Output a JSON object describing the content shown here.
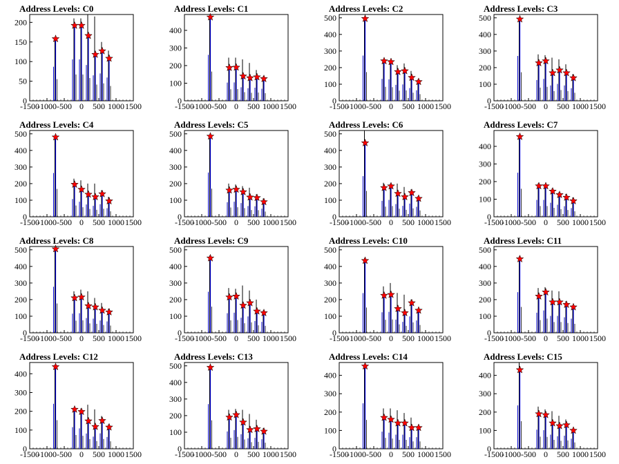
{
  "figure": {
    "axis_x": {
      "min": -1500,
      "max": 1500,
      "ticks": [
        -1500,
        -1000,
        -500,
        0,
        500,
        1000,
        1500
      ]
    },
    "marker_color": "#ff0000",
    "line_color_primary": "#0000cc",
    "line_color_secondary": "#000000"
  },
  "chart_data": [
    {
      "type": "histogram",
      "title": "Address Levels: C0",
      "ylim": [
        0,
        220
      ],
      "yticks": [
        0,
        50,
        100,
        150,
        200
      ],
      "peaks_x": [
        -750,
        -200,
        0,
        200,
        400,
        600,
        800
      ],
      "peaks_y": [
        158,
        192,
        192,
        166,
        118,
        127,
        108
      ],
      "max_y": [
        158,
        210,
        210,
        220,
        215,
        150,
        128
      ]
    },
    {
      "type": "histogram",
      "title": "Address Levels: C1",
      "ylim": [
        0,
        490
      ],
      "yticks": [
        0,
        100,
        200,
        300,
        400
      ],
      "peaks_x": [
        -750,
        -200,
        0,
        200,
        400,
        600,
        800
      ],
      "peaks_y": [
        475,
        188,
        190,
        140,
        130,
        135,
        125
      ],
      "max_y": [
        480,
        245,
        245,
        235,
        215,
        175,
        140
      ]
    },
    {
      "type": "histogram",
      "title": "Address Levels: C2",
      "ylim": [
        0,
        520
      ],
      "yticks": [
        0,
        100,
        200,
        300,
        400,
        500
      ],
      "peaks_x": [
        -750,
        -200,
        0,
        200,
        400,
        600,
        800
      ],
      "peaks_y": [
        495,
        240,
        235,
        175,
        180,
        140,
        115
      ],
      "max_y": [
        505,
        250,
        245,
        215,
        225,
        180,
        130
      ]
    },
    {
      "type": "histogram",
      "title": "Address Levels: C3",
      "ylim": [
        0,
        520
      ],
      "yticks": [
        0,
        100,
        200,
        300,
        400,
        500
      ],
      "peaks_x": [
        -750,
        -200,
        0,
        200,
        400,
        600,
        800
      ],
      "peaks_y": [
        492,
        228,
        240,
        168,
        185,
        168,
        138
      ],
      "max_y": [
        498,
        280,
        275,
        260,
        250,
        220,
        160
      ]
    },
    {
      "type": "histogram",
      "title": "Address Levels: C4",
      "ylim": [
        0,
        520
      ],
      "yticks": [
        0,
        100,
        200,
        300,
        400,
        500
      ],
      "peaks_x": [
        -750,
        -200,
        0,
        200,
        400,
        600,
        800
      ],
      "peaks_y": [
        480,
        195,
        165,
        135,
        120,
        138,
        95
      ],
      "max_y": [
        490,
        230,
        220,
        200,
        200,
        160,
        120
      ]
    },
    {
      "type": "histogram",
      "title": "Address Levels: C5",
      "ylim": [
        0,
        520
      ],
      "yticks": [
        0,
        100,
        200,
        300,
        400,
        500
      ],
      "peaks_x": [
        -750,
        -200,
        0,
        200,
        400,
        600,
        800
      ],
      "peaks_y": [
        485,
        160,
        165,
        150,
        118,
        115,
        90
      ],
      "max_y": [
        495,
        200,
        195,
        185,
        175,
        135,
        110
      ]
    },
    {
      "type": "histogram",
      "title": "Address Levels: C6",
      "ylim": [
        0,
        520
      ],
      "yticks": [
        0,
        100,
        200,
        300,
        400,
        500
      ],
      "peaks_x": [
        -750,
        -200,
        0,
        200,
        400,
        600,
        800
      ],
      "peaks_y": [
        445,
        175,
        185,
        140,
        120,
        145,
        110
      ],
      "max_y": [
        520,
        205,
        200,
        200,
        180,
        165,
        125
      ]
    },
    {
      "type": "histogram",
      "title": "Address Levels: C7",
      "ylim": [
        0,
        490
      ],
      "yticks": [
        0,
        100,
        200,
        300,
        400
      ],
      "peaks_x": [
        -750,
        -200,
        0,
        200,
        400,
        600,
        800
      ],
      "peaks_y": [
        455,
        175,
        175,
        145,
        125,
        110,
        90
      ],
      "max_y": [
        465,
        190,
        185,
        160,
        140,
        130,
        110
      ]
    },
    {
      "type": "histogram",
      "title": "Address Levels: C8",
      "ylim": [
        0,
        520
      ],
      "yticks": [
        0,
        100,
        200,
        300,
        400,
        500
      ],
      "peaks_x": [
        -750,
        -200,
        0,
        200,
        400,
        600,
        800
      ],
      "peaks_y": [
        505,
        210,
        215,
        162,
        155,
        135,
        125
      ],
      "max_y": [
        515,
        250,
        260,
        250,
        210,
        180,
        145
      ]
    },
    {
      "type": "histogram",
      "title": "Address Levels: C9",
      "ylim": [
        0,
        520
      ],
      "yticks": [
        0,
        100,
        200,
        300,
        400,
        500
      ],
      "peaks_x": [
        -750,
        -200,
        0,
        200,
        400,
        600,
        800
      ],
      "peaks_y": [
        450,
        215,
        220,
        165,
        180,
        130,
        120
      ],
      "max_y": [
        465,
        270,
        265,
        285,
        255,
        200,
        135
      ]
    },
    {
      "type": "histogram",
      "title": "Address Levels: C10",
      "ylim": [
        0,
        520
      ],
      "yticks": [
        0,
        100,
        200,
        300,
        400,
        500
      ],
      "peaks_x": [
        -750,
        -200,
        0,
        200,
        400,
        600,
        800
      ],
      "peaks_y": [
        435,
        225,
        230,
        145,
        120,
        180,
        135
      ],
      "max_y": [
        450,
        280,
        300,
        240,
        230,
        200,
        140
      ]
    },
    {
      "type": "histogram",
      "title": "Address Levels: C11",
      "ylim": [
        0,
        520
      ],
      "yticks": [
        0,
        100,
        200,
        300,
        400,
        500
      ],
      "peaks_x": [
        -750,
        -200,
        0,
        200,
        400,
        600,
        800
      ],
      "peaks_y": [
        445,
        220,
        245,
        185,
        185,
        170,
        155
      ],
      "max_y": [
        460,
        270,
        275,
        255,
        250,
        190,
        165
      ]
    },
    {
      "type": "histogram",
      "title": "Address Levels: C12",
      "ylim": [
        0,
        460
      ],
      "yticks": [
        0,
        100,
        200,
        300,
        400
      ],
      "peaks_x": [
        -750,
        -200,
        0,
        200,
        400,
        600,
        800
      ],
      "peaks_y": [
        437,
        210,
        198,
        148,
        118,
        150,
        115
      ],
      "max_y": [
        448,
        220,
        215,
        235,
        210,
        175,
        130
      ]
    },
    {
      "type": "histogram",
      "title": "Address Levels: C13",
      "ylim": [
        0,
        520
      ],
      "yticks": [
        0,
        100,
        200,
        300,
        400,
        500
      ],
      "peaks_x": [
        -750,
        -200,
        0,
        200,
        400,
        600,
        800
      ],
      "peaks_y": [
        490,
        190,
        205,
        160,
        115,
        120,
        105
      ],
      "max_y": [
        500,
        235,
        240,
        235,
        210,
        175,
        125
      ]
    },
    {
      "type": "histogram",
      "title": "Address Levels: C14",
      "ylim": [
        0,
        470
      ],
      "yticks": [
        0,
        100,
        200,
        300,
        400
      ],
      "peaks_x": [
        -750,
        -200,
        0,
        200,
        400,
        600,
        800
      ],
      "peaks_y": [
        450,
        170,
        160,
        140,
        140,
        115,
        115
      ],
      "max_y": [
        460,
        220,
        220,
        210,
        195,
        170,
        125
      ]
    },
    {
      "type": "histogram",
      "title": "Address Levels: C15",
      "ylim": [
        0,
        470
      ],
      "yticks": [
        0,
        100,
        200,
        300,
        400
      ],
      "peaks_x": [
        -750,
        -200,
        0,
        200,
        400,
        600,
        800
      ],
      "peaks_y": [
        430,
        190,
        185,
        140,
        125,
        130,
        100
      ],
      "max_y": [
        470,
        230,
        215,
        205,
        180,
        160,
        110
      ]
    }
  ]
}
